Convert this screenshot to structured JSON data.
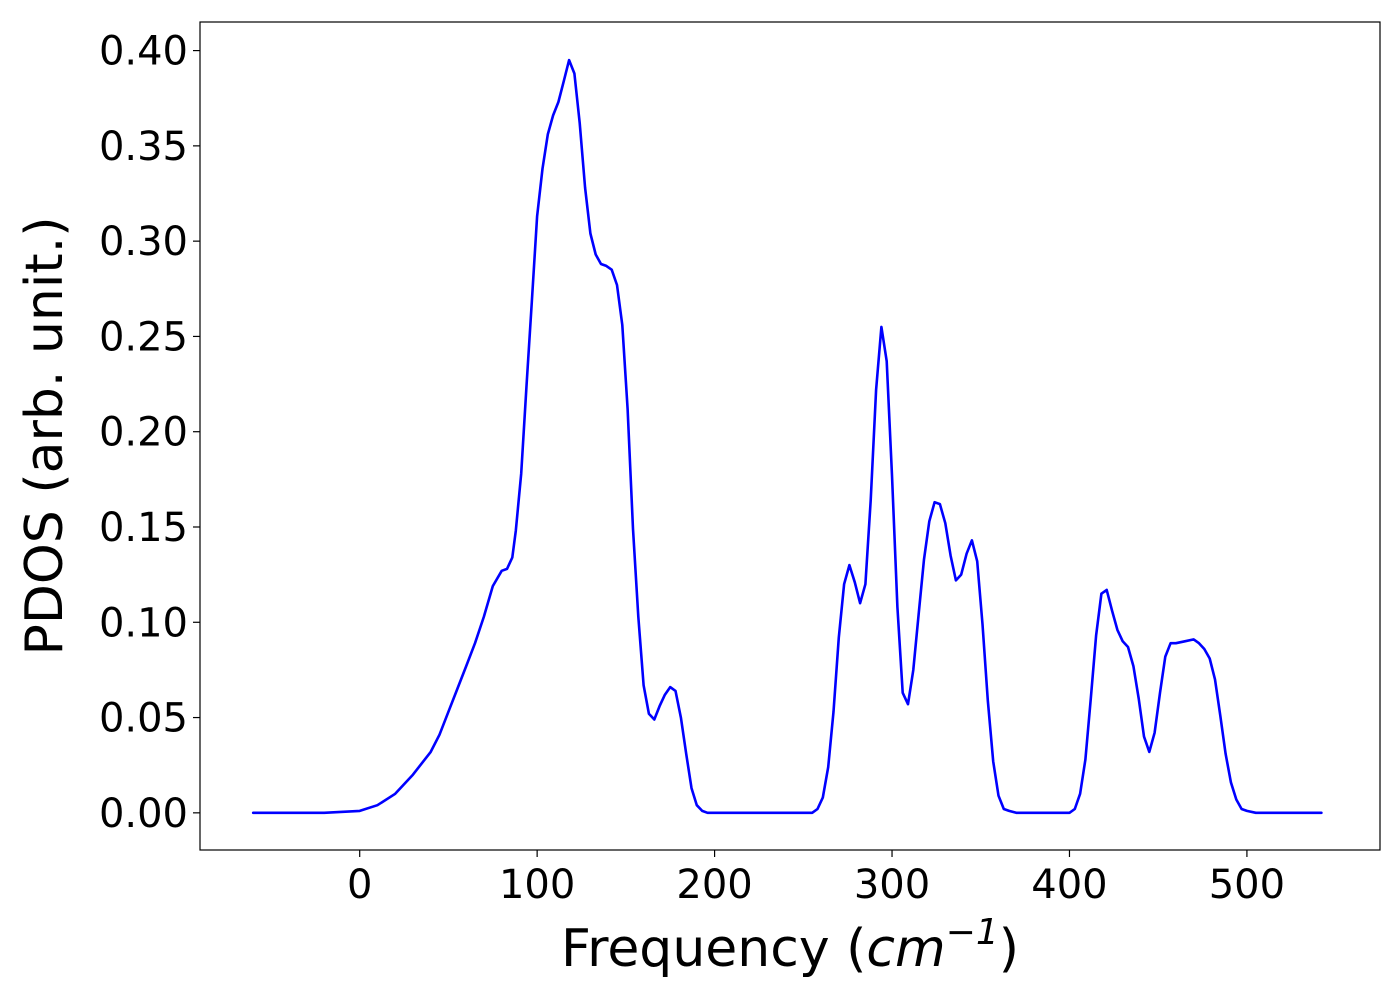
{
  "chart_data": {
    "type": "line",
    "title": "",
    "xlabel": "Frequency",
    "xlabel_open": "(",
    "xlabel_unit": "cm",
    "xlabel_exp": "−1",
    "xlabel_close": ")",
    "ylabel": "PDOS (arb. unit.)",
    "xlim": [
      -90,
      575
    ],
    "ylim": [
      -0.0195,
      0.415
    ],
    "xticks": [
      0,
      100,
      200,
      300,
      400,
      500
    ],
    "xtick_labels": [
      "0",
      "100",
      "200",
      "300",
      "400",
      "500"
    ],
    "yticks": [
      0.0,
      0.05,
      0.1,
      0.15,
      0.2,
      0.25,
      0.3,
      0.35,
      0.4
    ],
    "ytick_labels": [
      "0.00",
      "0.05",
      "0.10",
      "0.15",
      "0.20",
      "0.25",
      "0.30",
      "0.35",
      "0.40"
    ],
    "grid": false,
    "legend": "none",
    "series": [
      {
        "color": "#0000ff",
        "x": [
          -60,
          -20,
          0,
          10,
          20,
          30,
          40,
          45,
          50,
          55,
          60,
          65,
          70,
          75,
          80,
          83,
          86,
          88,
          91,
          94,
          97,
          100,
          103,
          106,
          109,
          112,
          115,
          118,
          121,
          124,
          127,
          130,
          133,
          136,
          139,
          142,
          145,
          148,
          151,
          154,
          157,
          160,
          163,
          166,
          169,
          172,
          175,
          178,
          181,
          184,
          187,
          190,
          193,
          196,
          200,
          210,
          240,
          255,
          258,
          261,
          264,
          267,
          270,
          273,
          276,
          279,
          282,
          285,
          288,
          291,
          294,
          297,
          300,
          303,
          306,
          309,
          312,
          315,
          318,
          321,
          324,
          327,
          330,
          333,
          336,
          339,
          342,
          345,
          348,
          351,
          354,
          357,
          360,
          363,
          366,
          370,
          380,
          400,
          403,
          406,
          409,
          412,
          415,
          418,
          421,
          424,
          427,
          430,
          433,
          436,
          439,
          442,
          445,
          448,
          451,
          454,
          457,
          460,
          465,
          470,
          473,
          476,
          479,
          482,
          485,
          488,
          491,
          494,
          497,
          500,
          505,
          520,
          542
        ],
        "y": [
          0.0,
          0.0,
          0.001,
          0.004,
          0.01,
          0.02,
          0.032,
          0.041,
          0.053,
          0.065,
          0.077,
          0.089,
          0.103,
          0.119,
          0.127,
          0.128,
          0.134,
          0.148,
          0.178,
          0.224,
          0.268,
          0.313,
          0.338,
          0.356,
          0.366,
          0.373,
          0.384,
          0.395,
          0.388,
          0.362,
          0.328,
          0.304,
          0.293,
          0.288,
          0.287,
          0.285,
          0.277,
          0.256,
          0.212,
          0.149,
          0.103,
          0.067,
          0.052,
          0.049,
          0.056,
          0.062,
          0.066,
          0.064,
          0.05,
          0.031,
          0.013,
          0.004,
          0.001,
          0.0,
          0.0,
          0.0,
          0.0,
          0.0,
          0.002,
          0.008,
          0.024,
          0.053,
          0.092,
          0.12,
          0.13,
          0.121,
          0.11,
          0.12,
          0.164,
          0.222,
          0.255,
          0.237,
          0.177,
          0.108,
          0.063,
          0.057,
          0.075,
          0.104,
          0.133,
          0.153,
          0.163,
          0.162,
          0.152,
          0.135,
          0.122,
          0.125,
          0.136,
          0.143,
          0.132,
          0.099,
          0.059,
          0.027,
          0.009,
          0.002,
          0.001,
          0.0,
          0.0,
          0.0,
          0.002,
          0.01,
          0.028,
          0.06,
          0.093,
          0.115,
          0.117,
          0.106,
          0.096,
          0.09,
          0.087,
          0.077,
          0.06,
          0.04,
          0.032,
          0.042,
          0.063,
          0.082,
          0.089,
          0.089,
          0.09,
          0.091,
          0.089,
          0.086,
          0.081,
          0.07,
          0.051,
          0.031,
          0.016,
          0.007,
          0.002,
          0.001,
          0.0,
          0.0,
          0.0
        ]
      }
    ]
  }
}
